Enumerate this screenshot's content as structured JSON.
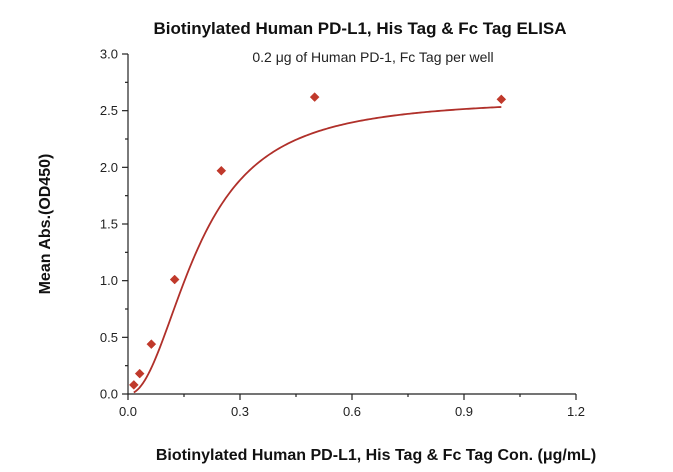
{
  "chart_data": {
    "type": "scatter",
    "title": "Biotinylated Human PD-L1, His Tag & Fc Tag ELISA",
    "subtitle": "0.2 μg of Human PD-1, Fc Tag per well",
    "xlabel": "Biotinylated Human PD-L1, His Tag & Fc Tag Con. (μg/mL)",
    "ylabel": "Mean Abs.(OD450)",
    "xlim": [
      0,
      1.2
    ],
    "ylim": [
      0,
      3.0
    ],
    "xticks": [
      "0.0",
      "0.3",
      "0.6",
      "0.9",
      "1.2"
    ],
    "xtick_values": [
      0,
      0.3,
      0.6,
      0.9,
      1.2
    ],
    "yticks": [
      "0.0",
      "0.5",
      "1.0",
      "1.5",
      "2.0",
      "2.5",
      "3.0"
    ],
    "ytick_values": [
      0,
      0.5,
      1.0,
      1.5,
      2.0,
      2.5,
      3.0
    ],
    "grid": false,
    "points": {
      "x": [
        0.0156,
        0.0313,
        0.0625,
        0.125,
        0.25,
        0.5,
        1.0
      ],
      "y": [
        0.08,
        0.18,
        0.44,
        1.01,
        1.97,
        2.62,
        2.6
      ]
    },
    "fit_curve": {
      "bottom": 0.0,
      "top": 2.61,
      "ec50": 0.19,
      "hill": 2.1
    },
    "colors": {
      "marker": "#c0392b",
      "curve": "#b0302a",
      "axis": "#222222"
    }
  }
}
